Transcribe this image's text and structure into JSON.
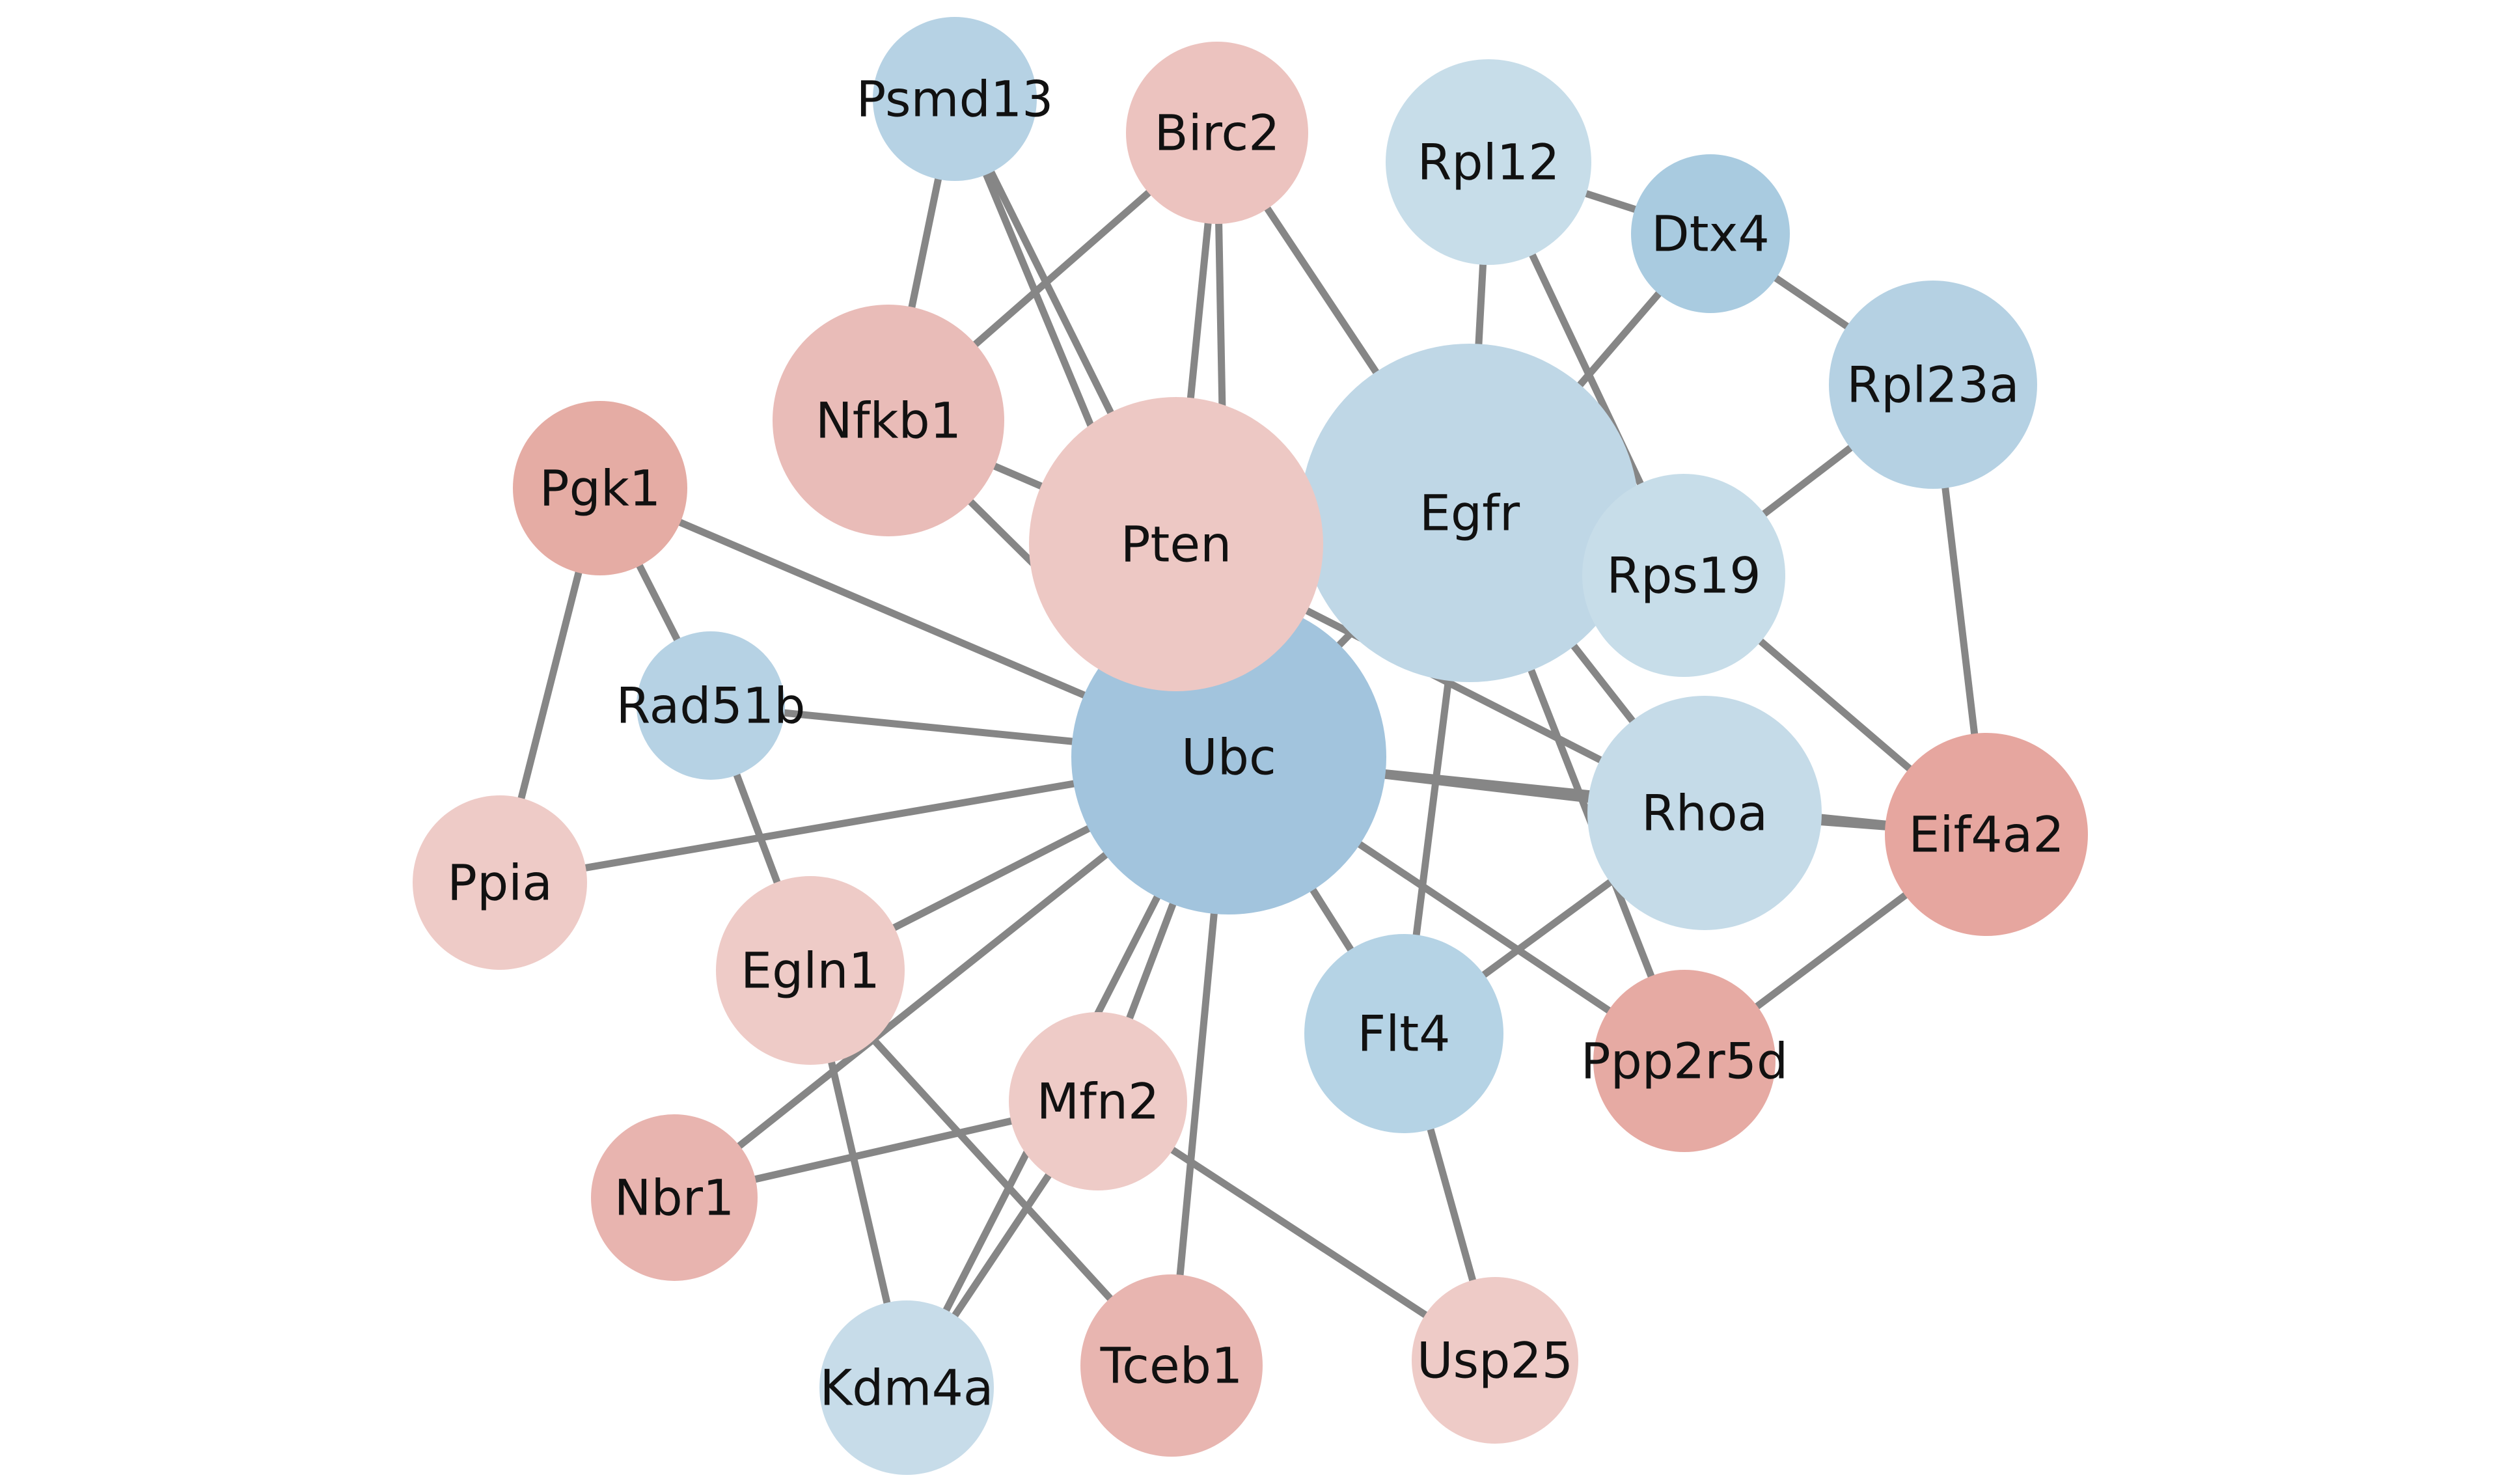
{
  "network": {
    "nodes": [
      {
        "id": "Ubc",
        "label": "Ubc",
        "color": "#a2c4dd"
      },
      {
        "id": "Egfr",
        "label": "Egfr",
        "color": "#bfd7e6"
      },
      {
        "id": "Pten",
        "label": "Pten",
        "color": "#edc8c4"
      },
      {
        "id": "Rhoa",
        "label": "Rhoa",
        "color": "#c5dbe8"
      },
      {
        "id": "Nfkb1",
        "label": "Nfkb1",
        "color": "#e9bcb8"
      },
      {
        "id": "Rpl23a",
        "label": "Rpl23a",
        "color": "#b5d1e3"
      },
      {
        "id": "Eif4a2",
        "label": "Eif4a2",
        "color": "#e6a69f"
      },
      {
        "id": "Rpl12",
        "label": "Rpl12",
        "color": "#c7dde9"
      },
      {
        "id": "Rps19",
        "label": "Rps19",
        "color": "#c7dde9"
      },
      {
        "id": "Flt4",
        "label": "Flt4",
        "color": "#b5d3e5"
      },
      {
        "id": "Birc2",
        "label": "Birc2",
        "color": "#ecc3bf"
      },
      {
        "id": "Pgk1",
        "label": "Pgk1",
        "color": "#e5aca4"
      },
      {
        "id": "Egln1",
        "label": "Egln1",
        "color": "#eecbc7"
      },
      {
        "id": "Mfn2",
        "label": "Mfn2",
        "color": "#eecbc7"
      },
      {
        "id": "Ppp2r5d",
        "label": "Ppp2r5d",
        "color": "#e6aaa3"
      },
      {
        "id": "Psmd13",
        "label": "Psmd13",
        "color": "#b6d2e4"
      },
      {
        "id": "Dtx4",
        "label": "Dtx4",
        "color": "#a9cbe0"
      },
      {
        "id": "Tceb1",
        "label": "Tceb1",
        "color": "#e8b5b0"
      },
      {
        "id": "Ppia",
        "label": "Ppia",
        "color": "#eecbc7"
      },
      {
        "id": "Nbr1",
        "label": "Nbr1",
        "color": "#e8b4af"
      },
      {
        "id": "Kdm4a",
        "label": "Kdm4a",
        "color": "#c7dce9"
      },
      {
        "id": "Usp25",
        "label": "Usp25",
        "color": "#eecbc7"
      },
      {
        "id": "Rad51b",
        "label": "Rad51b",
        "color": "#b6d2e4"
      }
    ],
    "edges": [
      [
        "Ubc",
        "Pgk1"
      ],
      [
        "Ubc",
        "Rad51b"
      ],
      [
        "Ubc",
        "Ppia"
      ],
      [
        "Ubc",
        "Egln1"
      ],
      [
        "Ubc",
        "Nbr1"
      ],
      [
        "Ubc",
        "Mfn2"
      ],
      [
        "Ubc",
        "Kdm4a"
      ],
      [
        "Ubc",
        "Tceb1"
      ],
      [
        "Ubc",
        "Flt4"
      ],
      [
        "Ubc",
        "Ppp2r5d"
      ],
      [
        "Ubc",
        "Rhoa"
      ],
      [
        "Ubc",
        "Egfr"
      ],
      [
        "Ubc",
        "Pten"
      ],
      [
        "Ubc",
        "Nfkb1"
      ],
      [
        "Ubc",
        "Eif4a2"
      ],
      [
        "Pgk1",
        "Rad51b"
      ],
      [
        "Pgk1",
        "Ppia"
      ],
      [
        "Rad51b",
        "Egln1"
      ],
      [
        "Egln1",
        "Kdm4a"
      ],
      [
        "Egln1",
        "Tceb1"
      ],
      [
        "Nbr1",
        "Mfn2"
      ],
      [
        "Mfn2",
        "Kdm4a"
      ],
      [
        "Mfn2",
        "Usp25"
      ],
      [
        "Flt4",
        "Usp25"
      ],
      [
        "Flt4",
        "Egfr"
      ],
      [
        "Flt4",
        "Rhoa"
      ],
      [
        "Ppp2r5d",
        "Eif4a2"
      ],
      [
        "Ppp2r5d",
        "Egfr"
      ],
      [
        "Rhoa",
        "Egfr"
      ],
      [
        "Rhoa",
        "Pten"
      ],
      [
        "Rhoa",
        "Eif4a2"
      ],
      [
        "Eif4a2",
        "Rps19"
      ],
      [
        "Eif4a2",
        "Rpl23a"
      ],
      [
        "Rps19",
        "Rpl23a"
      ],
      [
        "Rps19",
        "Rpl12"
      ],
      [
        "Rpl12",
        "Dtx4"
      ],
      [
        "Rpl12",
        "Egfr"
      ],
      [
        "Dtx4",
        "Rpl23a"
      ],
      [
        "Dtx4",
        "Egfr"
      ],
      [
        "Egfr",
        "Birc2"
      ],
      [
        "Pten",
        "Birc2"
      ],
      [
        "Pten",
        "Psmd13"
      ],
      [
        "Pten",
        "Nfkb1"
      ],
      [
        "Nfkb1",
        "Birc2"
      ],
      [
        "Nfkb1",
        "Psmd13"
      ],
      [
        "Psmd13",
        "Ubc"
      ],
      [
        "Birc2",
        "Ubc"
      ]
    ]
  }
}
